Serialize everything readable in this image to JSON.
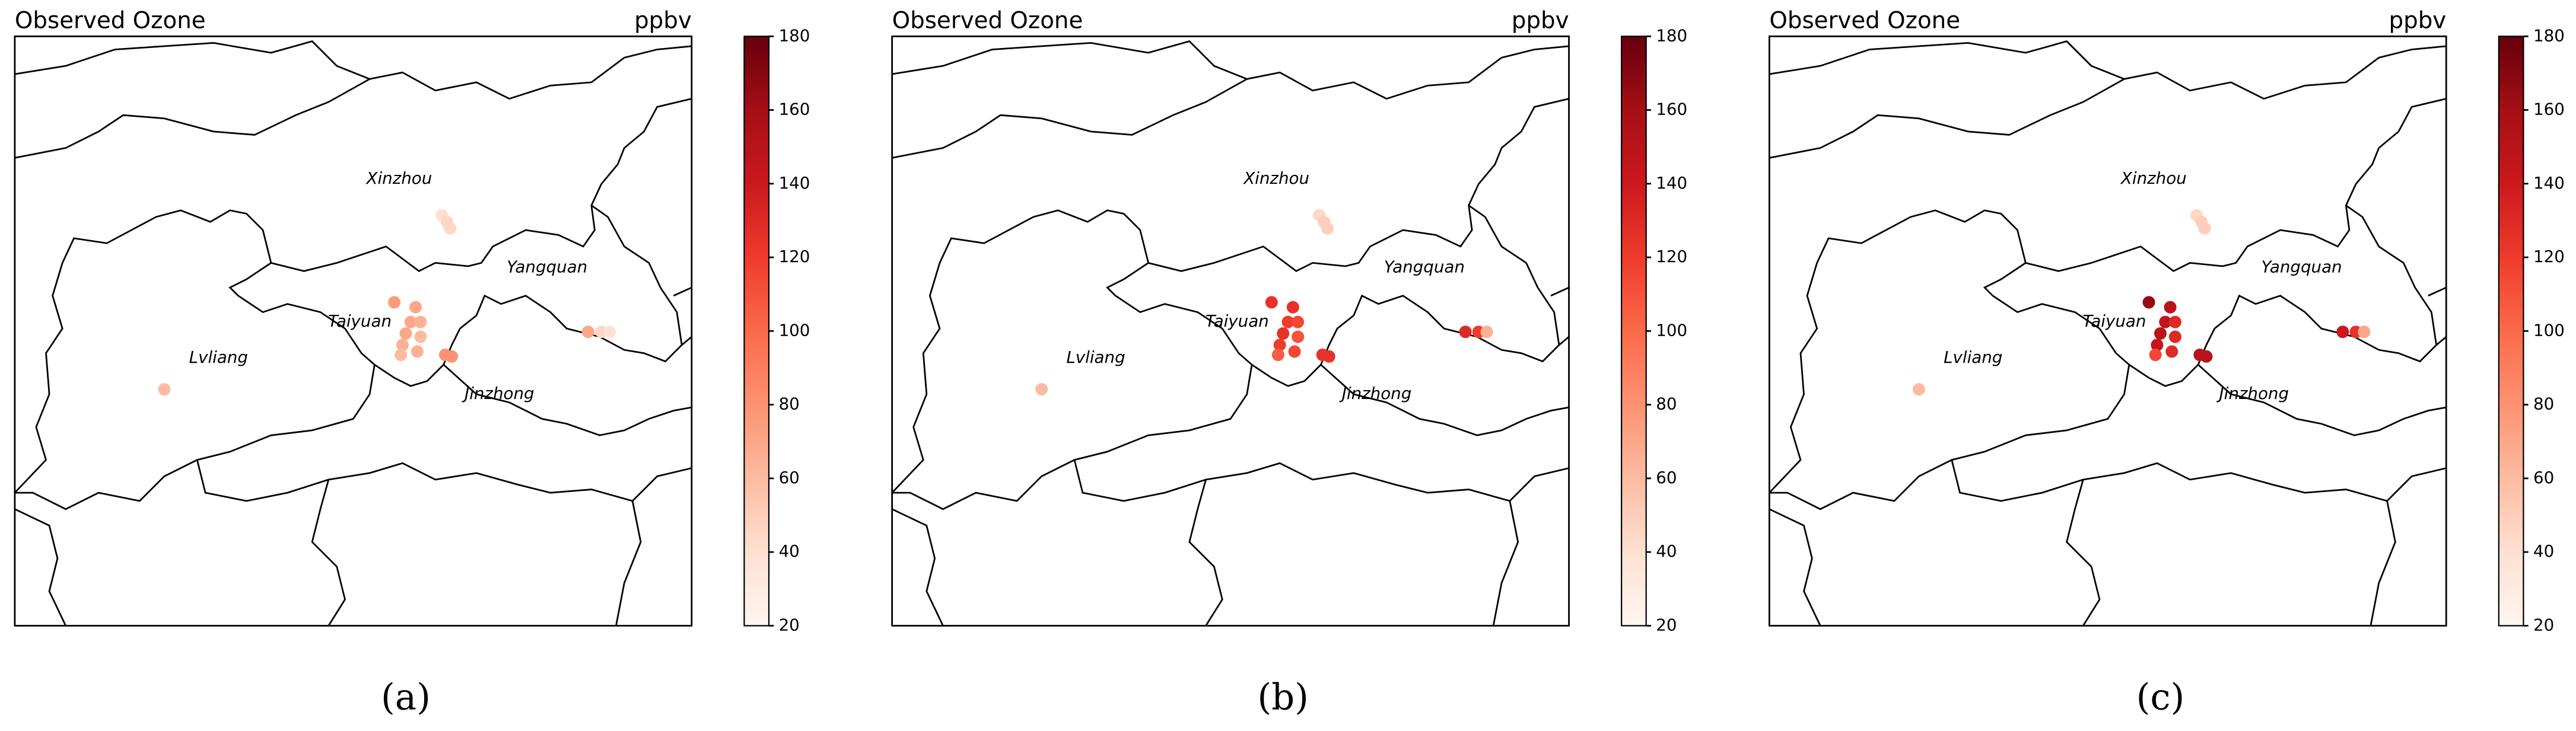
{
  "colorbar": {
    "lim": [
      20,
      180
    ],
    "ticks": [
      20,
      40,
      60,
      80,
      100,
      120,
      140,
      160,
      180
    ]
  },
  "regions": [
    "Xinzhou",
    "Yangquan",
    "Taiyuan",
    "Lvliang",
    "Jinzhong"
  ],
  "panels": [
    {
      "title": "Observed Ozone",
      "unit": "ppbv",
      "label": "(a)",
      "values": [
        40,
        45,
        45,
        75,
        70,
        70,
        65,
        70,
        60,
        65,
        65,
        60,
        80,
        80,
        70,
        45,
        40,
        60
      ]
    },
    {
      "title": "Observed Ozone",
      "unit": "ppbv",
      "label": "(b)",
      "values": [
        45,
        50,
        50,
        125,
        125,
        120,
        115,
        125,
        110,
        120,
        115,
        105,
        125,
        125,
        130,
        120,
        65,
        60
      ]
    },
    {
      "title": "Observed Ozone",
      "unit": "ppbv",
      "label": "(c)",
      "values": [
        45,
        50,
        50,
        165,
        150,
        145,
        130,
        150,
        130,
        145,
        130,
        115,
        150,
        150,
        140,
        125,
        70,
        60
      ]
    }
  ]
}
